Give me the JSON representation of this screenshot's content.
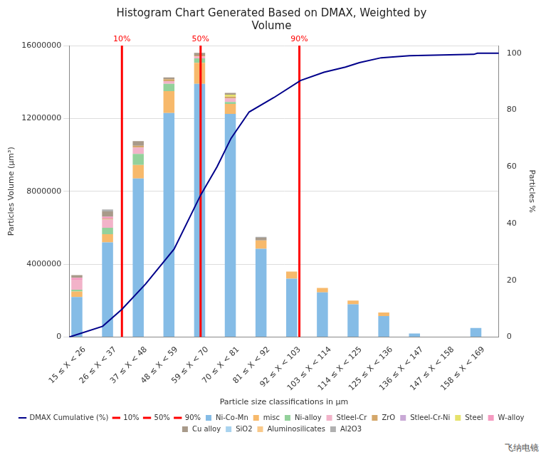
{
  "chart_data": {
    "type": "bar",
    "title": "Histogram Chart Generated Based on DMAX, Weighted by Volume",
    "x_label": "Particle size classifications in µm",
    "y_label": "Particles Volume (µm³)",
    "y2_label": "Particles %",
    "categories": [
      "15 ≤ X < 26",
      "26 ≤ X < 37",
      "37 ≤ X < 48",
      "48 ≤ X < 59",
      "59 ≤ X < 70",
      "70 ≤ X < 81",
      "81 ≤ X < 92",
      "92 ≤ X < 103",
      "103 ≤ X < 114",
      "114 ≤ X < 125",
      "125 ≤ X < 136",
      "136 ≤ X < 147",
      "147 ≤ X < 158",
      "158 ≤ X < 169"
    ],
    "bins": [
      15,
      26,
      37,
      48,
      59,
      70,
      81,
      92,
      103,
      114,
      125,
      136,
      147,
      158,
      169
    ],
    "xlim": [
      15,
      169
    ],
    "ylim": [
      0,
      16000000
    ],
    "yticks": [
      0,
      4000000,
      8000000,
      12000000,
      16000000
    ],
    "y2lim": [
      0,
      102.7
    ],
    "y2ticks": [
      0,
      20,
      40,
      60,
      80,
      100
    ],
    "stacked": true,
    "grid": true,
    "legend": "bottom",
    "series": [
      {
        "name": "Ni-Co-Mn",
        "color": "#85bce6",
        "values": [
          2200000,
          5200000,
          8700000,
          12300000,
          13900000,
          12250000,
          4850000,
          3200000,
          2450000,
          1800000,
          1150000,
          200000,
          0,
          500000
        ]
      },
      {
        "name": "misc",
        "color": "#f7b96b",
        "values": [
          300000,
          450000,
          750000,
          1200000,
          1150000,
          550000,
          450000,
          400000,
          250000,
          200000,
          200000,
          0,
          0,
          0
        ]
      },
      {
        "name": "Ni-alloy",
        "color": "#93d19b",
        "values": [
          100000,
          350000,
          600000,
          400000,
          250000,
          100000,
          0,
          0,
          0,
          0,
          0,
          0,
          0,
          0
        ]
      },
      {
        "name": "Stleel-Cr",
        "color": "#f2b3c9",
        "values": [
          550000,
          450000,
          350000,
          150000,
          100000,
          200000,
          0,
          0,
          0,
          0,
          0,
          0,
          0,
          0
        ]
      },
      {
        "name": "ZrO",
        "color": "#d4a76a",
        "values": [
          0,
          50000,
          100000,
          100000,
          50000,
          100000,
          0,
          0,
          0,
          0,
          0,
          0,
          0,
          0
        ]
      },
      {
        "name": "Stleel-Cr-Ni",
        "color": "#c9a9d6",
        "values": [
          0,
          0,
          0,
          0,
          0,
          0,
          0,
          0,
          0,
          0,
          0,
          0,
          0,
          0
        ]
      },
      {
        "name": "Steel",
        "color": "#e6e26b",
        "values": [
          0,
          0,
          0,
          0,
          0,
          100000,
          0,
          0,
          0,
          0,
          0,
          0,
          0,
          0
        ]
      },
      {
        "name": "W-alloy",
        "color": "#f59ac0",
        "values": [
          100000,
          100000,
          0,
          0,
          0,
          0,
          0,
          0,
          0,
          0,
          0,
          0,
          0,
          0
        ]
      },
      {
        "name": "Cu alloy",
        "color": "#a89a8a",
        "values": [
          150000,
          300000,
          250000,
          100000,
          150000,
          100000,
          150000,
          0,
          0,
          0,
          0,
          0,
          0,
          0
        ]
      },
      {
        "name": "SiO2",
        "color": "#a9d3ef",
        "values": [
          0,
          0,
          0,
          0,
          0,
          0,
          0,
          0,
          0,
          0,
          0,
          0,
          0,
          0
        ]
      },
      {
        "name": "Aluminosilicates",
        "color": "#f9c98a",
        "values": [
          0,
          0,
          0,
          0,
          0,
          0,
          0,
          0,
          0,
          0,
          0,
          0,
          0,
          0
        ]
      },
      {
        "name": "Al2O3",
        "color": "#b0b0b0",
        "values": [
          0,
          100000,
          0,
          0,
          0,
          0,
          50000,
          0,
          0,
          0,
          0,
          0,
          0,
          0
        ]
      },
      {
        "name": "DMAX Cumulative (%)",
        "type": "line",
        "axis": "y2",
        "color": "#00008b",
        "x": [
          15,
          27,
          33.9,
          42.4,
          52.6,
          62.1,
          68,
          73,
          79.5,
          88.4,
          97.9,
          106.3,
          114,
          119,
          126.8,
          137,
          160,
          161.3,
          167.7,
          169
        ],
        "values": [
          0,
          3.8,
          9.8,
          18.7,
          31,
          50,
          60,
          70,
          79.3,
          84.4,
          90.4,
          93.3,
          95.1,
          96.7,
          98.4,
          99.1,
          99.6,
          100,
          100,
          100
        ]
      }
    ],
    "markers": [
      {
        "label": "10%",
        "value": 33.9,
        "color": "#ff0000"
      },
      {
        "label": "50%",
        "value": 62.1,
        "color": "#ff0000"
      },
      {
        "label": "90%",
        "value": 97.5,
        "color": "#ff0000"
      }
    ],
    "annotations": [
      "飞纳电镜"
    ]
  }
}
